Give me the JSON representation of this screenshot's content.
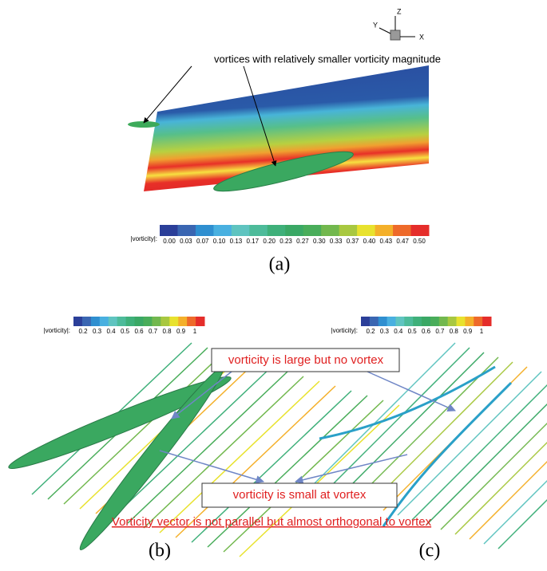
{
  "triad": {
    "z": "Z",
    "y": "Y",
    "x": "X"
  },
  "panel_a": {
    "annotation": "vortices with relatively smaller vorticity magnitude",
    "colorbar_label": "|vorticity|:",
    "colorbar_ticks": [
      "0.00",
      "0.03",
      "0.07",
      "0.10",
      "0.13",
      "0.17",
      "0.20",
      "0.23",
      "0.27",
      "0.30",
      "0.33",
      "0.37",
      "0.40",
      "0.43",
      "0.47",
      "0.50"
    ],
    "caption": "(a)"
  },
  "panel_b": {
    "colorbar_label": "|vorticity|:",
    "colorbar_ticks": [
      "0.2",
      "0.3",
      "0.4",
      "0.5",
      "0.6",
      "0.7",
      "0.8",
      "0.9",
      "1"
    ],
    "caption": "(b)"
  },
  "panel_c": {
    "colorbar_label": "|vorticity|:",
    "colorbar_ticks": [
      "0.2",
      "0.3",
      "0.4",
      "0.5",
      "0.6",
      "0.7",
      "0.8",
      "0.9",
      "1"
    ],
    "caption": "(c)"
  },
  "callouts": {
    "large": "vorticity is large but no vortex",
    "small": "vorticity is small at vortex",
    "note": "Vorticity vector is not parallel but almost orthogonal to vortex"
  }
}
